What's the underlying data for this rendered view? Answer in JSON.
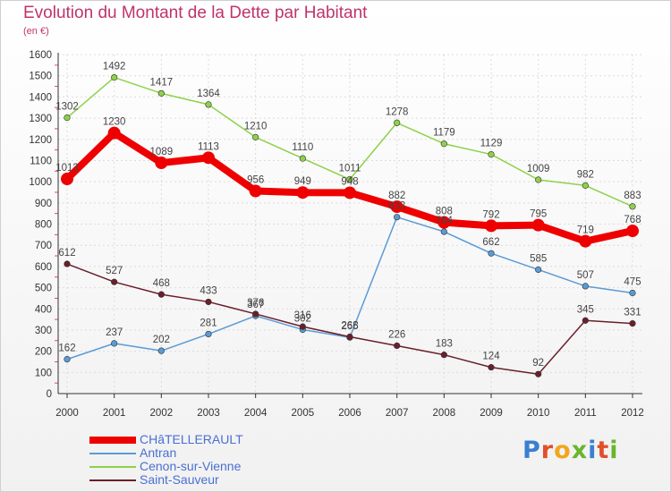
{
  "header": {
    "title": "Evolution du Montant de la Dette par Habitant",
    "unit": "(en €)"
  },
  "logo": {
    "text": "Proxiti"
  },
  "chart_data": {
    "type": "line",
    "x": [
      "2000",
      "2001",
      "2002",
      "2003",
      "2004",
      "2005",
      "2006",
      "2007",
      "2008",
      "2009",
      "2010",
      "2011",
      "2012"
    ],
    "ylim": [
      0,
      1600
    ],
    "yticks": [
      0,
      100,
      200,
      300,
      400,
      500,
      600,
      700,
      800,
      900,
      1000,
      1100,
      1200,
      1300,
      1400,
      1500,
      1600
    ],
    "grid": true,
    "legend_position": "bottom-left",
    "series": [
      {
        "name": "CHâTELLERAULT",
        "color": "#ee0000",
        "values": [
          1013,
          1230,
          1089,
          1113,
          956,
          949,
          948,
          882,
          808,
          792,
          795,
          719,
          768
        ]
      },
      {
        "name": "Antran",
        "color": "#5b9bd5",
        "values": [
          162,
          237,
          202,
          281,
          367,
          302,
          265,
          833,
          764,
          662,
          585,
          507,
          475
        ]
      },
      {
        "name": "Cenon-sur-Vienne",
        "color": "#8ed14a",
        "values": [
          1302,
          1492,
          1417,
          1364,
          1210,
          1110,
          1011,
          1278,
          1179,
          1129,
          1009,
          982,
          883
        ]
      },
      {
        "name": "Saint-Sauveur",
        "color": "#6b1f2a",
        "values": [
          612,
          527,
          468,
          433,
          376,
          316,
          268,
          226,
          183,
          124,
          92,
          345,
          331
        ]
      }
    ]
  }
}
